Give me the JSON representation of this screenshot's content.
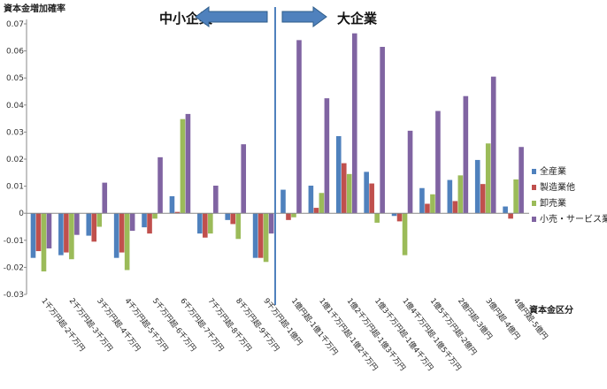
{
  "chart_data": {
    "type": "bar",
    "ylabel": "資本金増加確率",
    "xlabel": "資本金区分",
    "ylim": [
      -0.03,
      0.07
    ],
    "yticks": [
      "-0.03",
      "-0.02",
      "-0.01",
      "0",
      "0.01",
      "0.02",
      "0.03",
      "0.04",
      "0.05",
      "0.06",
      "0.07"
    ],
    "grid": false,
    "legend_position": "right",
    "annotations": {
      "left": "中小企業",
      "right": "大企業"
    },
    "categories": [
      "1千万円超-2千万円",
      "2千万円超-3千万円",
      "3千万円超-4千万円",
      "4千万円超-5千万円",
      "5千万円超-6千万円",
      "6千万円超-7千万円",
      "7千万円超-8千万円",
      "8千万円超-9千万円",
      "9千万円超-1億円",
      "1億円超-1億1千万円",
      "1億1千万円超-1億2千万円",
      "1億2千万円超-1億3千万円",
      "1億3千万円超-1億4千万円",
      "1億4千万円超-1億5千万円",
      "1億5千万円超-2億円",
      "2億円超-3億円",
      "3億円超-4億円",
      "4億円超-5億円"
    ],
    "series": [
      {
        "name": "全産業",
        "color": "#4F81BD",
        "values": [
          -0.0165,
          -0.0155,
          -0.0083,
          -0.0165,
          -0.0052,
          0.0063,
          -0.0075,
          -0.0025,
          -0.0165,
          0.0087,
          0.0102,
          0.0285,
          0.0153,
          -0.001,
          0.0093,
          0.0123,
          0.0197,
          0.0025
        ]
      },
      {
        "name": "製造業他",
        "color": "#C0504D",
        "values": [
          -0.014,
          -0.0145,
          -0.0105,
          -0.0145,
          -0.0075,
          0.0005,
          -0.009,
          -0.004,
          -0.0165,
          -0.0025,
          0.002,
          0.0185,
          0.011,
          -0.003,
          0.0035,
          0.0045,
          0.0108,
          -0.002
        ]
      },
      {
        "name": "卸売業",
        "color": "#9BBB59",
        "values": [
          -0.0215,
          -0.017,
          -0.005,
          -0.021,
          -0.002,
          0.0348,
          -0.0075,
          -0.0095,
          -0.018,
          -0.0015,
          0.0075,
          0.0145,
          -0.0035,
          -0.0155,
          0.007,
          0.014,
          0.0258,
          0.0125
        ]
      },
      {
        "name": "小売・サービス業",
        "color": "#8064A2",
        "values": [
          -0.013,
          -0.008,
          0.0113,
          -0.0065,
          0.0207,
          0.0367,
          0.0102,
          0.0255,
          -0.0075,
          0.064,
          0.0425,
          0.0665,
          0.0615,
          0.0305,
          0.0378,
          0.0433,
          0.0505,
          0.0245
        ]
      }
    ]
  }
}
